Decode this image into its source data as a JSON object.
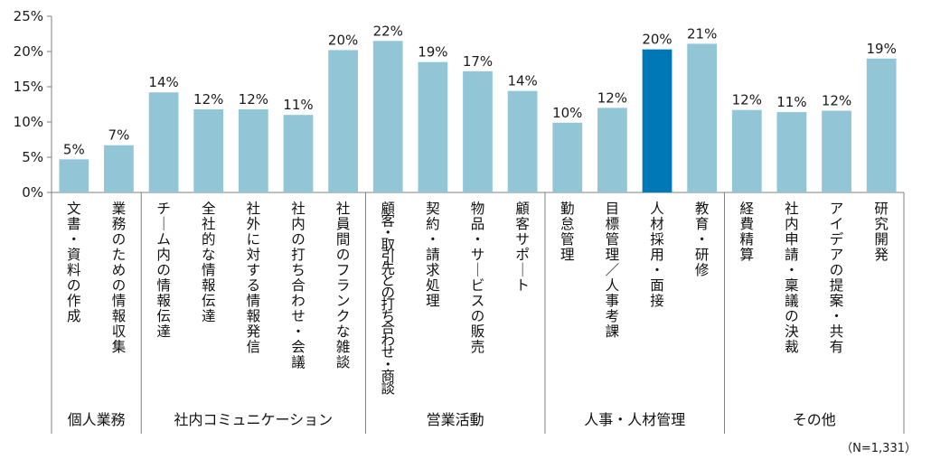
{
  "chart_data": {
    "type": "bar",
    "title": "",
    "xlabel": "",
    "ylabel": "",
    "ylim": [
      0,
      25
    ],
    "yticks": [
      0,
      5,
      10,
      15,
      20,
      25
    ],
    "tick_suffix": "%",
    "grid": false,
    "categories": [
      "文書・資料の作成",
      "業務のための情報収集",
      "チーム内の情報伝達",
      "全社的な情報伝達",
      "社外に対する情報発信",
      "社内の打ち合わせ・会議",
      "社員間のフランクな雑談",
      "顧客・取引先との打ち合わせ・商談",
      "契約・請求処理",
      "物品・サービスの販売",
      "顧客サポート",
      "勤怠管理",
      "目標管理／人事考課",
      "人材採用・面接",
      "教育・研修",
      "経費精算",
      "社内申請・稟議の決裁",
      "アイデアの提案・共有",
      "研究開発"
    ],
    "values": [
      4.7,
      6.7,
      14.2,
      11.8,
      11.8,
      11.0,
      20.2,
      21.5,
      18.5,
      17.2,
      14.4,
      9.9,
      12.0,
      20.3,
      21.1,
      11.7,
      11.4,
      11.6,
      19.0
    ],
    "data_labels": [
      "5%",
      "7%",
      "14%",
      "12%",
      "12%",
      "11%",
      "20%",
      "22%",
      "19%",
      "17%",
      "14%",
      "10%",
      "12%",
      "20%",
      "21%",
      "12%",
      "11%",
      "12%",
      "19%"
    ],
    "highlight_index": 13,
    "groups": [
      {
        "label": "個人業務",
        "count": 2
      },
      {
        "label": "社内コミュニケーション",
        "count": 5
      },
      {
        "label": "営業活動",
        "count": 4
      },
      {
        "label": "人事・人材管理",
        "count": 4
      },
      {
        "label": "その他",
        "count": 4
      }
    ],
    "colors": {
      "bar": "#92c5d6",
      "highlight": "#0078b8",
      "axis": "#7f7f7f"
    }
  },
  "note": "（N=1,331）"
}
